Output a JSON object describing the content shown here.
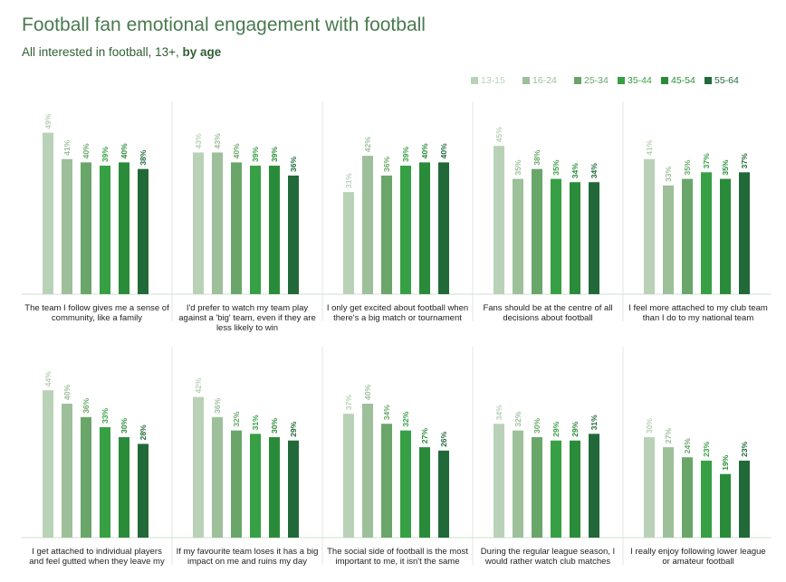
{
  "title": "Football fan emotional engagement with football",
  "subtitle_prefix": "All interested in football, 13+,",
  "subtitle_bold": "by age",
  "colors": [
    "#b9d2b7",
    "#9dc09b",
    "#6aa66a",
    "#37a045",
    "#2a8c3a",
    "#22693a"
  ],
  "chart_data": {
    "type": "bar",
    "series_names": [
      "13-15",
      "16-24",
      "25-34",
      "35-44",
      "45-54",
      "55-64"
    ],
    "ylim": [
      0,
      50
    ],
    "panels": [
      {
        "label_lines": [
          "The team I follow gives me a sense of",
          "community, like a family"
        ],
        "values": [
          49,
          41,
          40,
          39,
          40,
          38
        ],
        "value_labels": [
          "49%",
          "41%",
          "40%",
          "39%",
          "40%",
          "38%"
        ]
      },
      {
        "label_lines": [
          "I'd prefer to watch my team play",
          "against a 'big' team, even if they are",
          "less likely to win"
        ],
        "values": [
          43,
          43,
          40,
          39,
          39,
          36
        ],
        "value_labels": [
          "43%",
          "43%",
          "40%",
          "39%",
          "39%",
          "36%"
        ]
      },
      {
        "label_lines": [
          "I only get excited about football when",
          "there's a big match or tournament"
        ],
        "values": [
          31,
          42,
          36,
          39,
          40,
          40
        ],
        "value_labels": [
          "31%",
          "42%",
          "36%",
          "39%",
          "40%",
          "40%"
        ]
      },
      {
        "label_lines": [
          "Fans should be at the centre of all",
          "decisions about football"
        ],
        "values": [
          45,
          35,
          38,
          35,
          34,
          34
        ],
        "value_labels": [
          "45%",
          "35%",
          "38%",
          "35%",
          "34%",
          "34%"
        ]
      },
      {
        "label_lines": [
          "I feel more attached to my club team",
          "than I do to my national team"
        ],
        "values": [
          41,
          33,
          35,
          37,
          35,
          37
        ],
        "value_labels": [
          "41%",
          "33%",
          "35%",
          "37%",
          "35%",
          "37%"
        ]
      },
      {
        "label_lines": [
          "I get attached to individual players",
          "and feel gutted when they leave my"
        ],
        "values": [
          44,
          40,
          36,
          33,
          30,
          28
        ],
        "value_labels": [
          "44%",
          "40%",
          "36%",
          "33%",
          "30%",
          "28%"
        ]
      },
      {
        "label_lines": [
          "If my favourite team loses it has a big",
          "impact on me and ruins my day"
        ],
        "values": [
          42,
          36,
          32,
          31,
          30,
          29
        ],
        "value_labels": [
          "42%",
          "36%",
          "32%",
          "31%",
          "30%",
          "29%"
        ]
      },
      {
        "label_lines": [
          "The social side of football is the most",
          "important to me, it isn't the same"
        ],
        "values": [
          37,
          40,
          34,
          32,
          27,
          26
        ],
        "value_labels": [
          "37%",
          "40%",
          "34%",
          "32%",
          "27%",
          "26%"
        ]
      },
      {
        "label_lines": [
          "During the regular league season, I",
          "would rather watch club matches"
        ],
        "values": [
          34,
          32,
          30,
          29,
          29,
          31
        ],
        "value_labels": [
          "34%",
          "32%",
          "30%",
          "29%",
          "29%",
          "31%"
        ]
      },
      {
        "label_lines": [
          "I really enjoy following lower league",
          "or amateur football"
        ],
        "values": [
          30,
          27,
          24,
          23,
          19,
          23
        ],
        "value_labels": [
          "30%",
          "27%",
          "24%",
          "23%",
          "19%",
          "23%"
        ]
      }
    ]
  }
}
